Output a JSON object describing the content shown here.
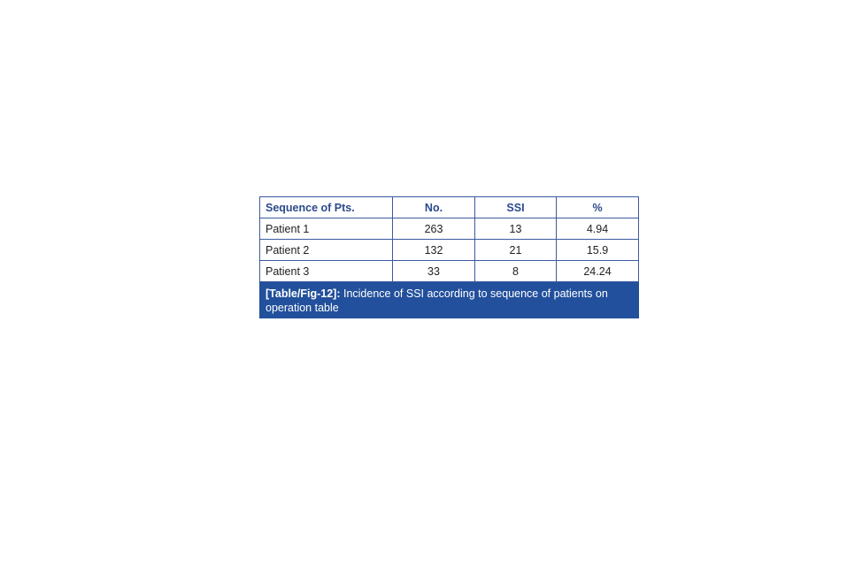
{
  "table": {
    "headers": [
      "Sequence of Pts.",
      "No.",
      "SSI",
      "%"
    ],
    "rows": [
      [
        "Patient 1",
        "263",
        "13",
        "4.94"
      ],
      [
        "Patient 2",
        "132",
        "21",
        "15.9"
      ],
      [
        "Patient 3",
        "33",
        "8",
        "24.24"
      ]
    ]
  },
  "caption": {
    "label": "[Table/Fig-12]:",
    "text": " Incidence of SSI according to sequence of patients on operation table"
  },
  "colors": {
    "border": "#3b5aa0",
    "header_text": "#2c4a8c",
    "caption_bg": "#22509c"
  }
}
